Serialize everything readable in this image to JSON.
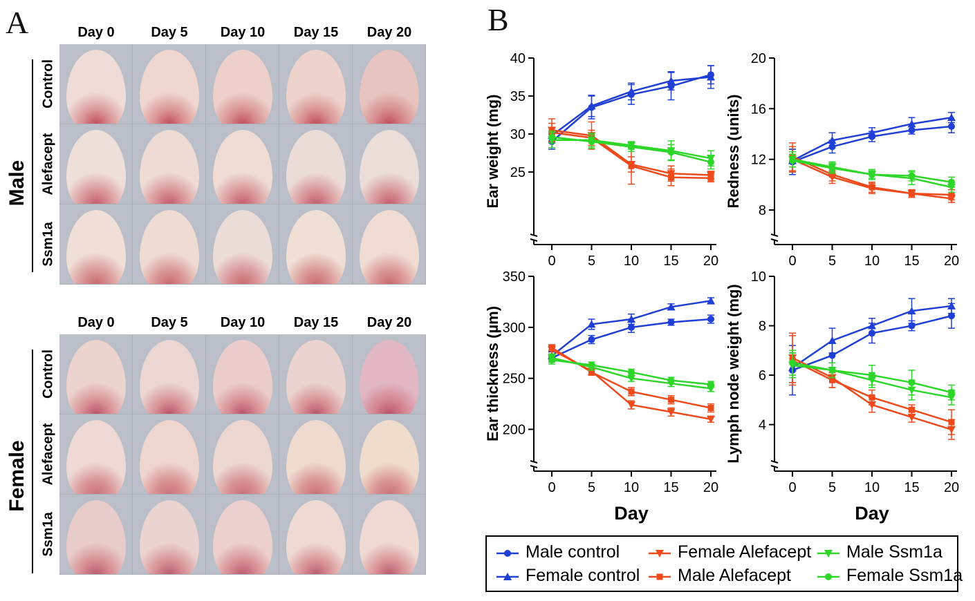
{
  "panels": {
    "a": "A",
    "b": "B"
  },
  "photo_grid": {
    "day_labels": [
      "Day 0",
      "Day 5",
      "Day 10",
      "Day 15",
      "Day 20"
    ],
    "groups": [
      {
        "sex": "Male",
        "rows": [
          "Control",
          "Alefacept",
          "Ssm1a"
        ]
      },
      {
        "sex": "Female",
        "rows": [
          "Control",
          "Alefacept",
          "Ssm1a"
        ]
      }
    ]
  },
  "colors": {
    "blue": "#1f3fd6",
    "red": "#ee4a1c",
    "green": "#2ed62a"
  },
  "legend": [
    {
      "label": "Male control",
      "color": "#1f3fd6",
      "marker": "circle"
    },
    {
      "label": "Female control",
      "color": "#1f3fd6",
      "marker": "triangle-up"
    },
    {
      "label": "Female Alefacept",
      "color": "#ee4a1c",
      "marker": "triangle-down"
    },
    {
      "label": "Male Alefacept",
      "color": "#ee4a1c",
      "marker": "square"
    },
    {
      "label": "Male Ssm1a",
      "color": "#2ed62a",
      "marker": "triangle-down"
    },
    {
      "label": "Female Ssm1a",
      "color": "#2ed62a",
      "marker": "circle"
    }
  ],
  "chart_data": [
    {
      "type": "line",
      "ylabel": "Ear weight (mg)",
      "xlabel": "",
      "x": [
        0,
        5,
        10,
        15,
        20
      ],
      "xticks": [
        "0",
        "5",
        "10",
        "15",
        "20"
      ],
      "yticks": [
        "25",
        "30",
        "35",
        "40"
      ],
      "ylim": [
        18,
        40
      ],
      "series": [
        {
          "name": "Male control",
          "values": [
            29.0,
            33.5,
            35.2,
            36.3,
            37.8
          ],
          "errors": [
            1.0,
            1.5,
            1.3,
            1.8,
            1.2
          ]
        },
        {
          "name": "Female control",
          "values": [
            29.8,
            33.7,
            35.6,
            37.0,
            37.5
          ],
          "errors": [
            1.0,
            1.4,
            1.1,
            1.2,
            1.5
          ]
        },
        {
          "name": "Female Alefacept",
          "values": [
            30.5,
            29.8,
            26.0,
            24.8,
            24.6
          ],
          "errors": [
            1.5,
            1.8,
            1.0,
            1.0,
            0.5
          ]
        },
        {
          "name": "Male Alefacept",
          "values": [
            30.2,
            29.5,
            25.8,
            24.3,
            24.2
          ],
          "errors": [
            1.2,
            1.0,
            2.4,
            1.1,
            0.5
          ]
        },
        {
          "name": "Male Ssm1a",
          "values": [
            29.2,
            29.2,
            28.5,
            27.8,
            26.8
          ],
          "errors": [
            1.0,
            0.9,
            0.5,
            1.3,
            1.0
          ]
        },
        {
          "name": "Female Ssm1a",
          "values": [
            29.6,
            29.0,
            28.3,
            27.6,
            26.3
          ],
          "errors": [
            0.8,
            0.9,
            0.6,
            1.0,
            0.9
          ]
        }
      ]
    },
    {
      "type": "line",
      "ylabel": "Redness (units)",
      "xlabel": "",
      "x": [
        0,
        5,
        10,
        15,
        20
      ],
      "xticks": [
        "0",
        "5",
        "10",
        "15",
        "20"
      ],
      "yticks": [
        "8",
        "12",
        "16",
        "20"
      ],
      "ylim": [
        6.8,
        20
      ],
      "series": [
        {
          "name": "Male control",
          "values": [
            11.8,
            13.0,
            13.8,
            14.3,
            14.6
          ],
          "errors": [
            1.0,
            0.5,
            0.4,
            0.3,
            0.5
          ]
        },
        {
          "name": "Female control",
          "values": [
            11.9,
            13.5,
            14.1,
            14.8,
            15.3
          ],
          "errors": [
            0.9,
            0.6,
            0.4,
            0.5,
            0.4
          ]
        },
        {
          "name": "Female Alefacept",
          "values": [
            12.0,
            10.6,
            9.7,
            9.3,
            8.9
          ],
          "errors": [
            1.0,
            0.5,
            0.4,
            0.3,
            0.3
          ]
        },
        {
          "name": "Male Alefacept",
          "values": [
            12.2,
            10.8,
            9.8,
            9.3,
            9.2
          ],
          "errors": [
            1.1,
            0.5,
            0.4,
            0.3,
            0.4
          ]
        },
        {
          "name": "Male Ssm1a",
          "values": [
            12.0,
            11.4,
            10.8,
            10.5,
            9.8
          ],
          "errors": [
            0.6,
            0.4,
            0.3,
            0.5,
            0.4
          ]
        },
        {
          "name": "Female Ssm1a",
          "values": [
            11.9,
            11.3,
            10.8,
            10.7,
            10.2
          ],
          "errors": [
            0.5,
            0.4,
            0.4,
            0.4,
            0.4
          ]
        }
      ]
    },
    {
      "type": "line",
      "ylabel": "Ear thickness (µm)",
      "xlabel": "Day",
      "x": [
        0,
        5,
        10,
        15,
        20
      ],
      "xticks": [
        "0",
        "5",
        "10",
        "15",
        "20"
      ],
      "yticks": [
        "200",
        "250",
        "300",
        "350"
      ],
      "ylim": [
        178,
        350
      ],
      "series": [
        {
          "name": "Male control",
          "values": [
            270,
            288,
            300,
            305,
            308
          ],
          "errors": [
            4,
            4,
            5,
            3,
            4
          ]
        },
        {
          "name": "Female control",
          "values": [
            272,
            303,
            308,
            320,
            326
          ],
          "errors": [
            4,
            5,
            5,
            3,
            3
          ]
        },
        {
          "name": "Female Alefacept",
          "values": [
            278,
            257,
            224,
            217,
            210
          ],
          "errors": [
            4,
            3,
            4,
            4,
            3
          ]
        },
        {
          "name": "Male Alefacept",
          "values": [
            280,
            256,
            237,
            229,
            221
          ],
          "errors": [
            3,
            3,
            4,
            4,
            4
          ]
        },
        {
          "name": "Male Ssm1a",
          "values": [
            270,
            261,
            250,
            245,
            240
          ],
          "errors": [
            4,
            3,
            3,
            3,
            3
          ]
        },
        {
          "name": "Female Ssm1a",
          "values": [
            268,
            263,
            256,
            248,
            244
          ],
          "errors": [
            4,
            3,
            3,
            3,
            3
          ]
        }
      ]
    },
    {
      "type": "line",
      "ylabel": "Lymph node weight (mg)",
      "xlabel": "Day",
      "x": [
        0,
        5,
        10,
        15,
        20
      ],
      "xticks": [
        "0",
        "5",
        "10",
        "15",
        "20"
      ],
      "yticks": [
        "4",
        "6",
        "8",
        "10"
      ],
      "ylim": [
        2.9,
        10
      ],
      "series": [
        {
          "name": "Male control",
          "values": [
            6.2,
            6.8,
            7.7,
            8.0,
            8.4
          ],
          "errors": [
            1.0,
            0.5,
            0.4,
            0.2,
            0.5
          ]
        },
        {
          "name": "Female control",
          "values": [
            6.3,
            7.4,
            8.0,
            8.6,
            8.8
          ],
          "errors": [
            0.6,
            0.5,
            0.3,
            0.5,
            0.3
          ]
        },
        {
          "name": "Female Alefacept",
          "values": [
            6.7,
            5.9,
            4.8,
            4.3,
            3.8
          ],
          "errors": [
            1.0,
            0.4,
            0.3,
            0.2,
            0.4
          ]
        },
        {
          "name": "Male Alefacept",
          "values": [
            6.6,
            5.8,
            5.1,
            4.6,
            4.1
          ],
          "errors": [
            1.0,
            0.3,
            0.3,
            0.2,
            0.5
          ]
        },
        {
          "name": "Male Ssm1a",
          "values": [
            6.4,
            6.2,
            5.8,
            5.4,
            5.1
          ],
          "errors": [
            0.5,
            0.3,
            0.3,
            0.4,
            0.3
          ]
        },
        {
          "name": "Female Ssm1a",
          "values": [
            6.5,
            6.2,
            6.0,
            5.7,
            5.3
          ],
          "errors": [
            0.5,
            0.3,
            0.4,
            0.5,
            0.3
          ]
        }
      ]
    }
  ]
}
